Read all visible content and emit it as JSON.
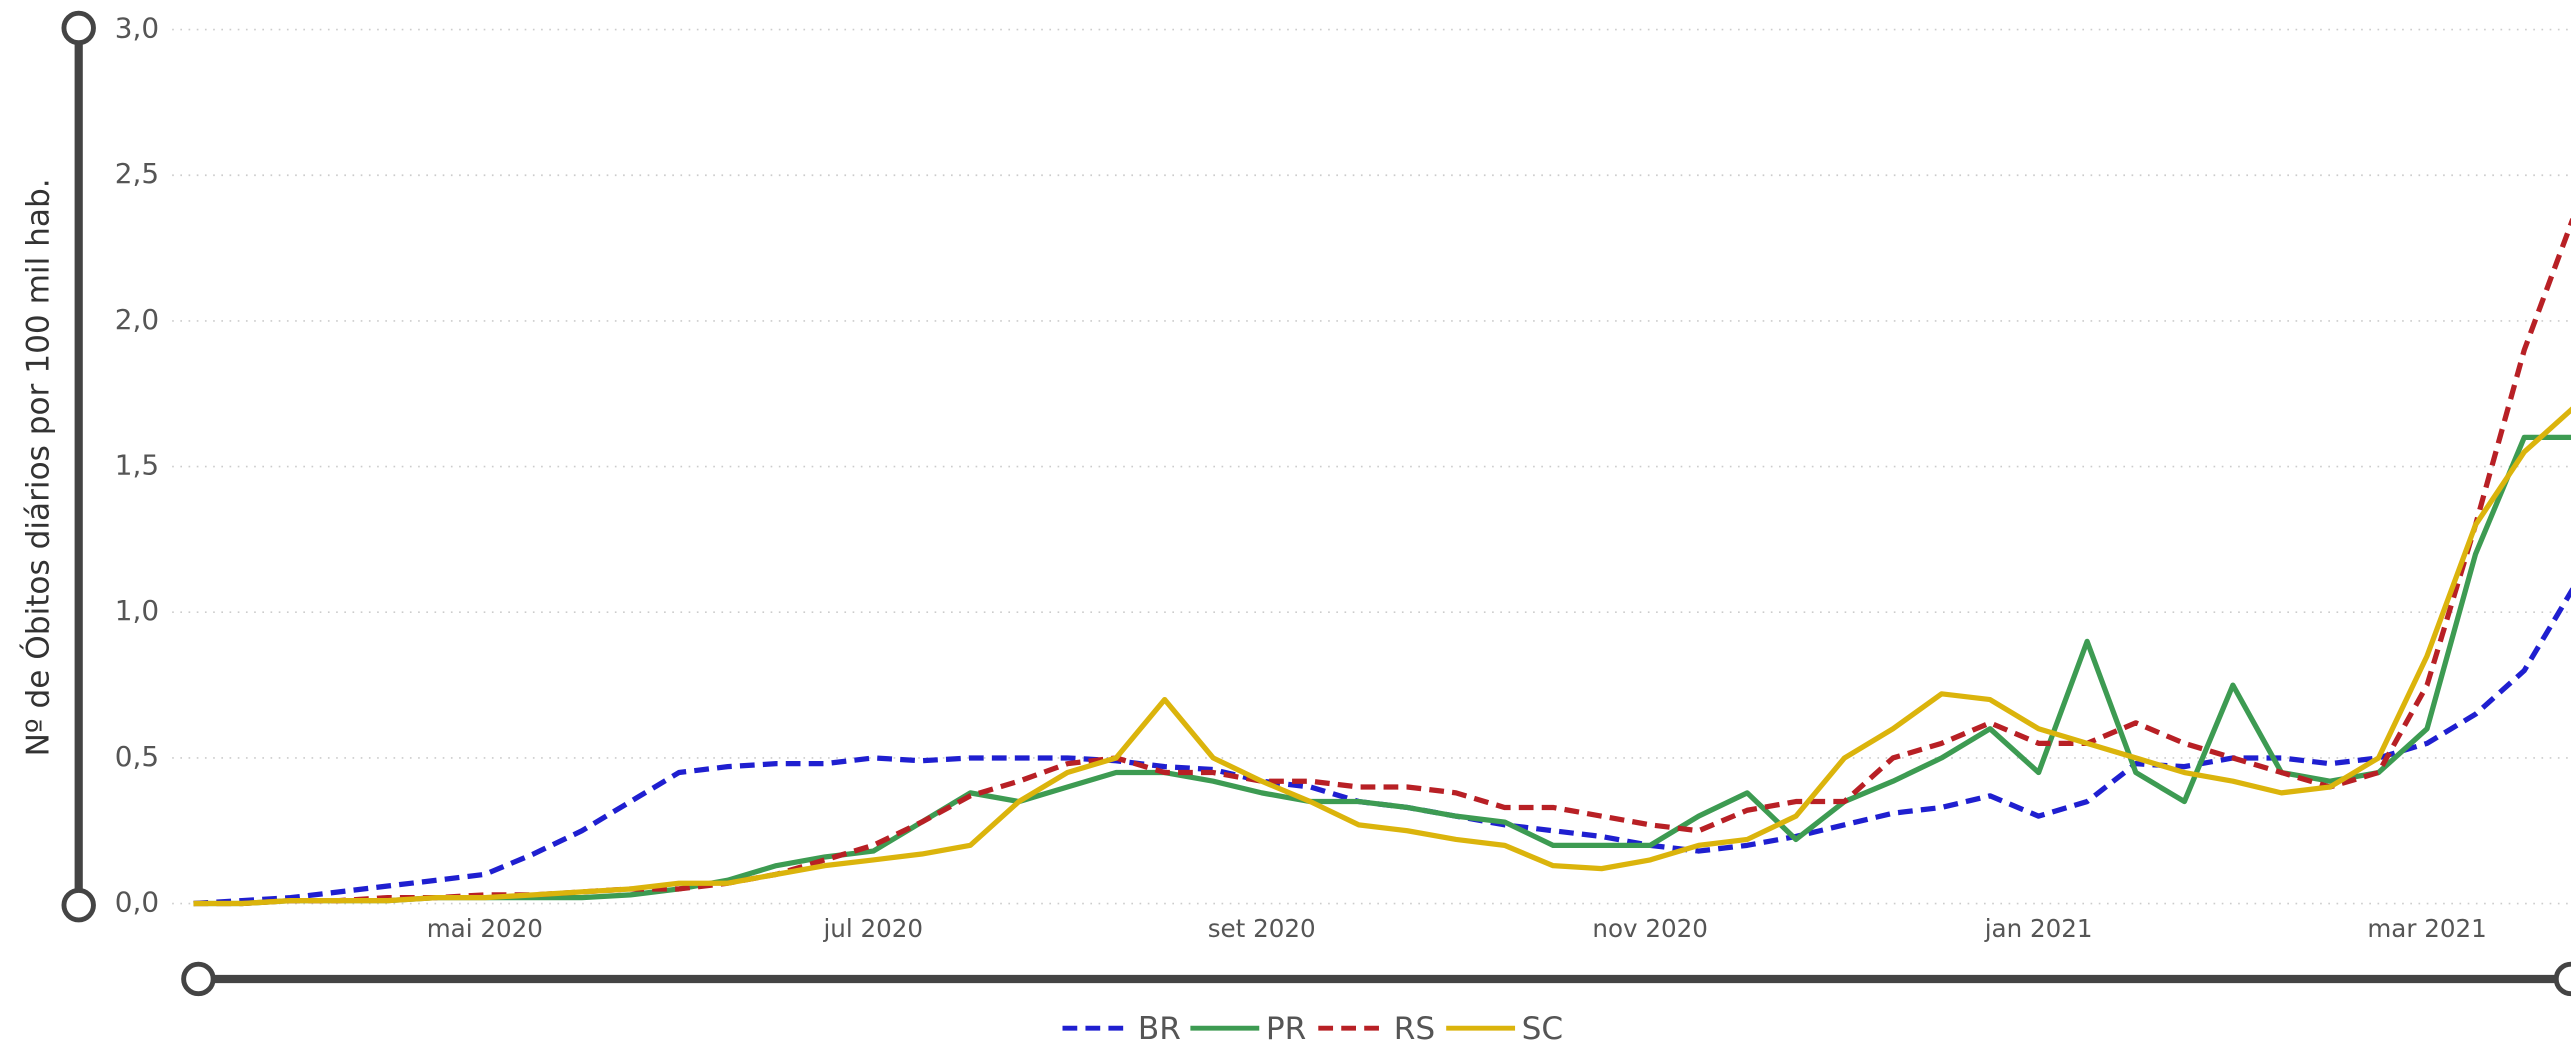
{
  "chart_data": {
    "type": "line",
    "y_label": "Nº de Óbitos diários por 100 mil hab.",
    "xlim": [
      3.5,
      15.8
    ],
    "xticks": [
      {
        "value": 5,
        "label": "mai 2020"
      },
      {
        "value": 7,
        "label": "jul 2020"
      },
      {
        "value": 9,
        "label": "set 2020"
      },
      {
        "value": 11,
        "label": "nov 2020"
      },
      {
        "value": 13,
        "label": "jan 2021"
      },
      {
        "value": 15,
        "label": "mar 2021"
      }
    ],
    "ylim": [
      0,
      3
    ],
    "yticks": [
      {
        "value": 0,
        "label": "0,0"
      },
      {
        "value": 0.5,
        "label": "0,5"
      },
      {
        "value": 1,
        "label": "1,0"
      },
      {
        "value": 1.5,
        "label": "1,5"
      },
      {
        "value": 2,
        "label": "2,0"
      },
      {
        "value": 2.5,
        "label": "2,5"
      },
      {
        "value": 3,
        "label": "3,0"
      }
    ],
    "grid": true,
    "legend": "bottom",
    "x": [
      3.5,
      3.75,
      4,
      4.25,
      4.5,
      4.75,
      5,
      5.25,
      5.5,
      5.75,
      6,
      6.25,
      6.5,
      6.75,
      7,
      7.25,
      7.5,
      7.75,
      8,
      8.25,
      8.5,
      8.75,
      9,
      9.25,
      9.5,
      9.75,
      10,
      10.25,
      10.5,
      10.75,
      11,
      11.25,
      11.5,
      11.75,
      12,
      12.25,
      12.5,
      12.75,
      13,
      13.25,
      13.5,
      13.75,
      14,
      14.25,
      14.5,
      14.75,
      15,
      15.25,
      15.5,
      15.75
    ],
    "series": [
      {
        "name": "BR",
        "color": "#1f1fd0",
        "dashed": true,
        "values": [
          0,
          0.01,
          0.02,
          0.04,
          0.06,
          0.08,
          0.1,
          0.17,
          0.25,
          0.35,
          0.45,
          0.47,
          0.48,
          0.48,
          0.5,
          0.49,
          0.5,
          0.5,
          0.5,
          0.49,
          0.47,
          0.46,
          0.42,
          0.4,
          0.35,
          0.33,
          0.3,
          0.27,
          0.25,
          0.23,
          0.2,
          0.18,
          0.2,
          0.23,
          0.27,
          0.31,
          0.33,
          0.37,
          0.3,
          0.35,
          0.48,
          0.47,
          0.5,
          0.5,
          0.48,
          0.5,
          0.55,
          0.65,
          0.8,
          1.08
        ]
      },
      {
        "name": "PR",
        "color": "#3d9b52",
        "dashed": false,
        "values": [
          0,
          0,
          0.01,
          0.01,
          0.01,
          0.02,
          0.02,
          0.02,
          0.02,
          0.03,
          0.05,
          0.08,
          0.13,
          0.16,
          0.18,
          0.28,
          0.38,
          0.35,
          0.4,
          0.45,
          0.45,
          0.42,
          0.38,
          0.35,
          0.35,
          0.33,
          0.3,
          0.28,
          0.2,
          0.2,
          0.2,
          0.3,
          0.38,
          0.22,
          0.35,
          0.42,
          0.5,
          0.6,
          0.45,
          0.9,
          0.45,
          0.35,
          0.75,
          0.45,
          0.42,
          0.45,
          0.6,
          1.2,
          1.6,
          1.6
        ]
      },
      {
        "name": "RS",
        "color": "#b82025",
        "dashed": true,
        "values": [
          0,
          0,
          0.01,
          0.01,
          0.02,
          0.02,
          0.03,
          0.03,
          0.04,
          0.05,
          0.05,
          0.07,
          0.1,
          0.15,
          0.2,
          0.28,
          0.37,
          0.42,
          0.48,
          0.5,
          0.45,
          0.45,
          0.42,
          0.42,
          0.4,
          0.4,
          0.38,
          0.33,
          0.33,
          0.3,
          0.27,
          0.25,
          0.32,
          0.35,
          0.35,
          0.5,
          0.55,
          0.62,
          0.55,
          0.55,
          0.62,
          0.55,
          0.5,
          0.45,
          0.4,
          0.45,
          0.75,
          1.3,
          1.9,
          2.35
        ]
      },
      {
        "name": "SC",
        "color": "#dbb40c",
        "dashed": false,
        "values": [
          0,
          0,
          0.01,
          0.01,
          0.01,
          0.02,
          0.02,
          0.03,
          0.04,
          0.05,
          0.07,
          0.07,
          0.1,
          0.13,
          0.15,
          0.17,
          0.2,
          0.35,
          0.45,
          0.5,
          0.7,
          0.5,
          0.42,
          0.35,
          0.27,
          0.25,
          0.22,
          0.2,
          0.13,
          0.12,
          0.15,
          0.2,
          0.22,
          0.3,
          0.5,
          0.6,
          0.72,
          0.7,
          0.6,
          0.55,
          0.5,
          0.45,
          0.42,
          0.38,
          0.4,
          0.5,
          0.85,
          1.3,
          1.55,
          1.7
        ]
      }
    ]
  }
}
